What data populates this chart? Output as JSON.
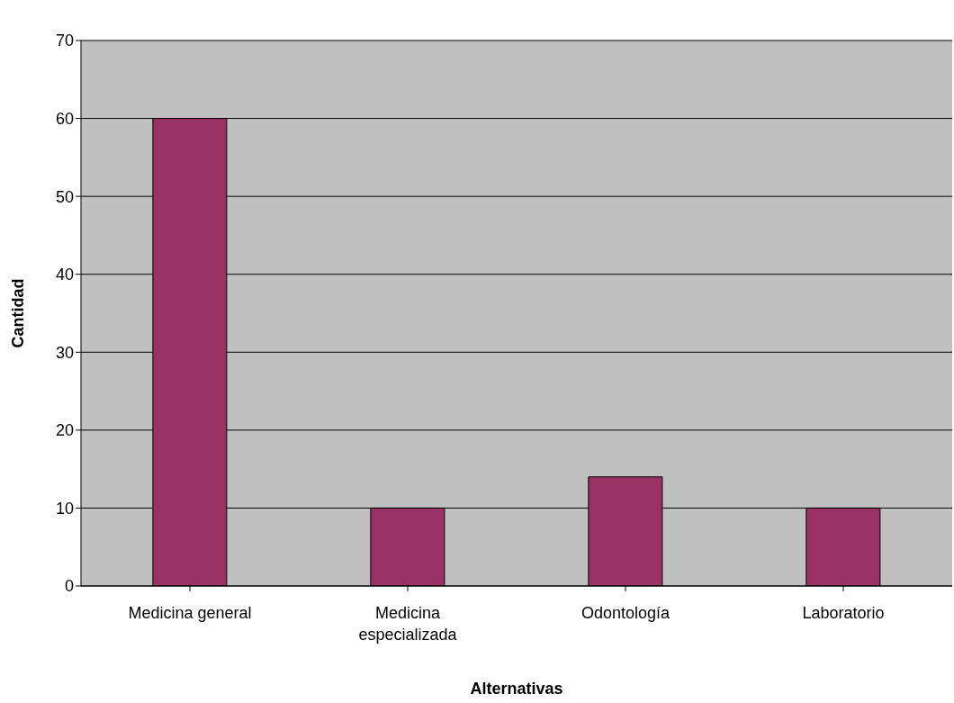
{
  "chart_data": {
    "type": "bar",
    "xlabel": "Alternativas",
    "ylabel": "Cantidad",
    "categories": [
      "Medicina general",
      "Medicina especializada",
      "Odontología",
      "Laboratorio"
    ],
    "values": [
      60,
      10,
      14,
      10
    ],
    "color": "#993366",
    "ylim": [
      0,
      70
    ],
    "yticks": [
      0,
      10,
      20,
      30,
      40,
      50,
      60,
      70
    ],
    "grid": "y"
  }
}
